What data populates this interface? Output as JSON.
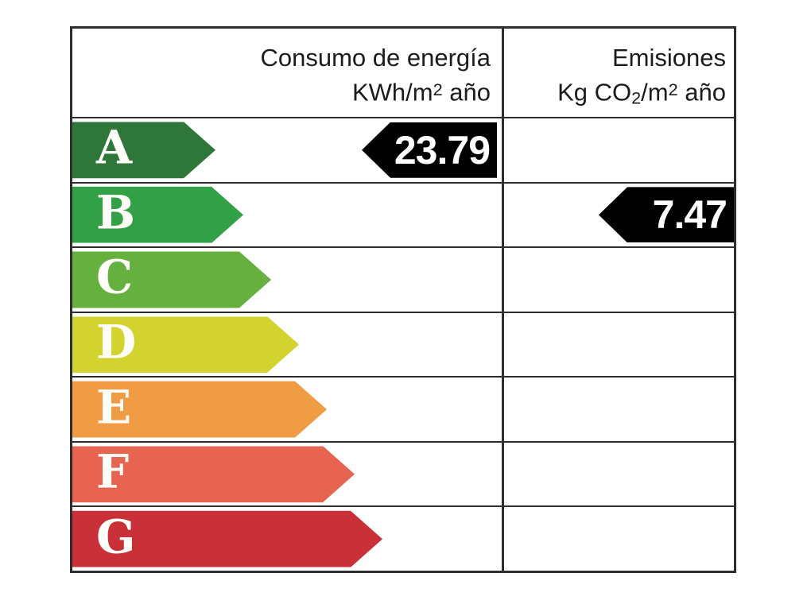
{
  "header": {
    "consumption": {
      "line1": "Consumo de energía",
      "unit_base": "KWh/m",
      "unit_sup": "2",
      "unit_rest": " año"
    },
    "emissions": {
      "line1": "Emisiones",
      "unit_pre": "Kg CO",
      "unit_sub": "2",
      "unit_mid": "/m",
      "unit_sup": "2",
      "unit_rest": " año"
    }
  },
  "ratings": [
    {
      "letter": "A",
      "color": "#2e763a"
    },
    {
      "letter": "B",
      "color": "#31a047"
    },
    {
      "letter": "C",
      "color": "#65b03e"
    },
    {
      "letter": "D",
      "color": "#d2d32f"
    },
    {
      "letter": "E",
      "color": "#f09c45"
    },
    {
      "letter": "F",
      "color": "#e76450"
    },
    {
      "letter": "G",
      "color": "#ca3037"
    }
  ],
  "values": {
    "consumption": {
      "value": "23.79",
      "row": "A",
      "column": "consumption"
    },
    "emissions": {
      "value": "7.47",
      "row": "B",
      "column": "emissions"
    }
  },
  "colors": {
    "value_arrow_bg": "#000000",
    "value_text": "#ffffff",
    "grid_line": "#2d2d2d",
    "letter_text": "#fffef8"
  },
  "chart_data": {
    "type": "bar",
    "subtype": "energy-efficiency-label",
    "orientation": "horizontal",
    "categories": [
      "A",
      "B",
      "C",
      "D",
      "E",
      "F",
      "G"
    ],
    "category_colors": [
      "#2e763a",
      "#31a047",
      "#65b03e",
      "#d2d32f",
      "#f09c45",
      "#e76450",
      "#ca3037"
    ],
    "columns": [
      {
        "header": "Consumo de energía KWh/m2 año",
        "value": 23.79,
        "assigned_rating": "A"
      },
      {
        "header": "Emisiones Kg CO2/m2 año",
        "value": 7.47,
        "assigned_rating": "B"
      }
    ],
    "title": "",
    "legend": "off",
    "grid": "table-lines"
  }
}
